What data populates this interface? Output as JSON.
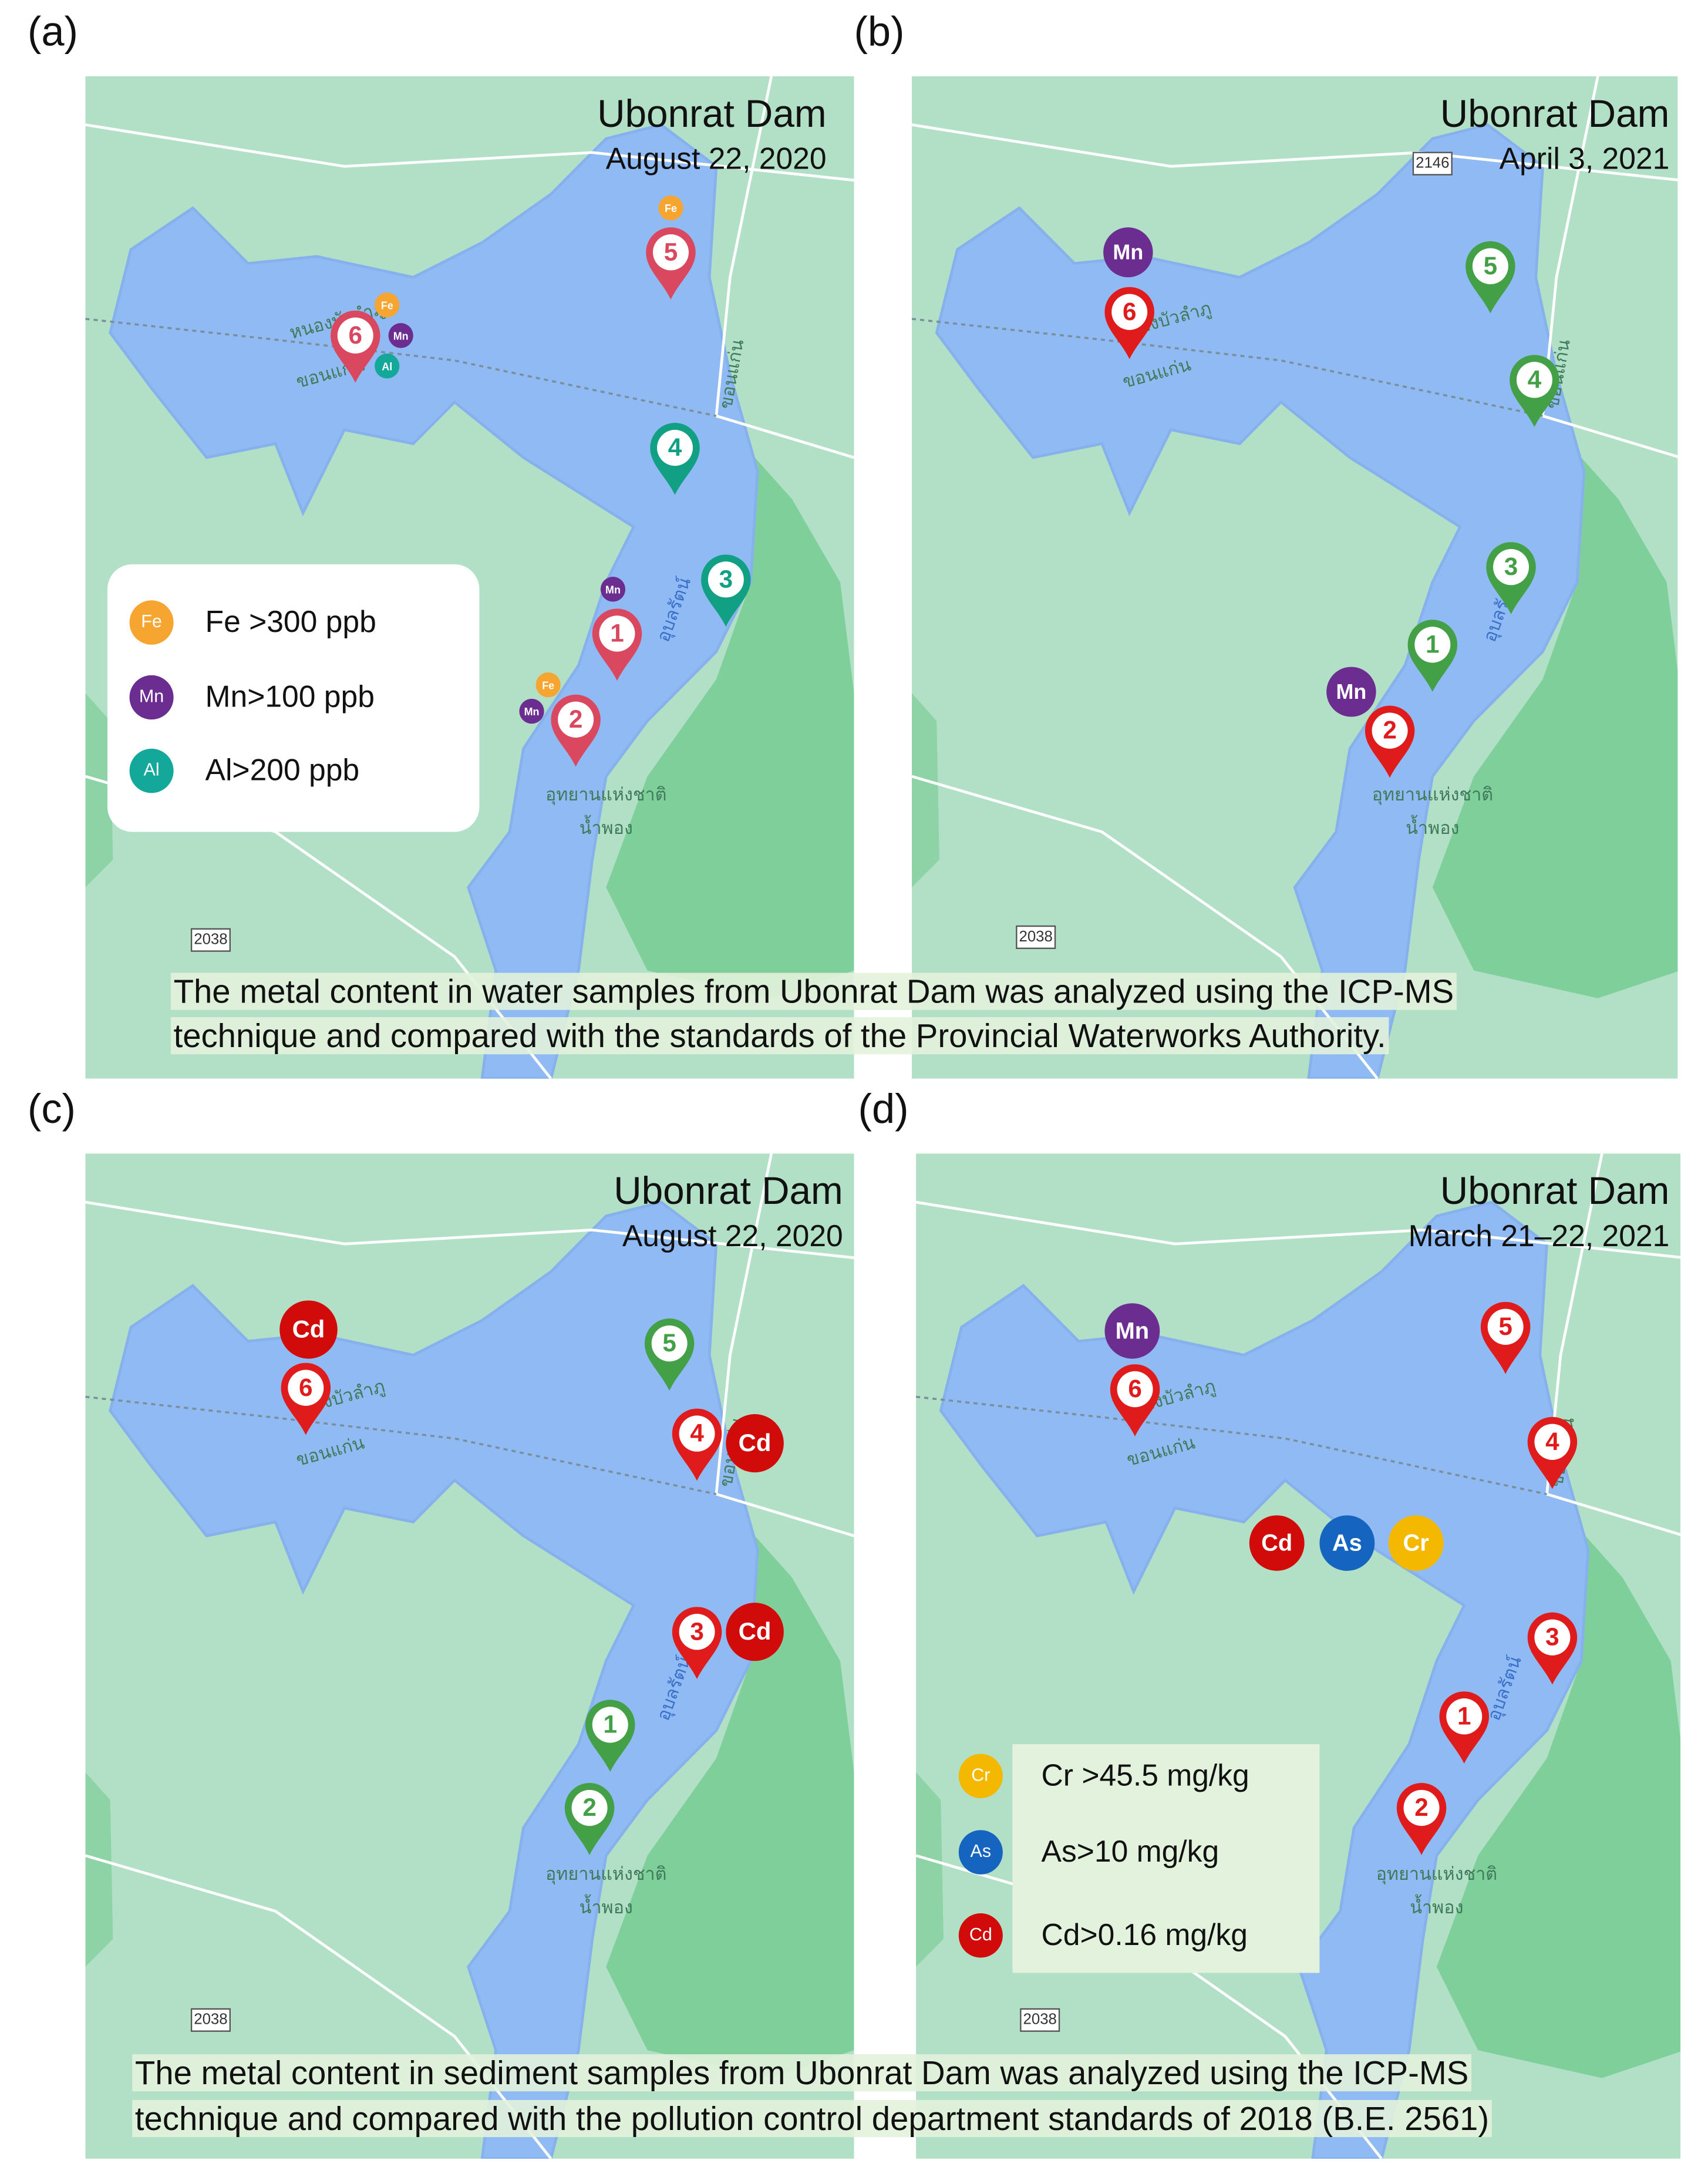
{
  "panels": [
    {
      "label": "(a)",
      "title": "Ubonrat Dam",
      "date": "August 22, 2020",
      "roads": [
        "2038"
      ],
      "markers": [
        {
          "label": "5",
          "color": "#d9485e"
        },
        {
          "label": "6",
          "color": "#d9485e"
        },
        {
          "label": "4",
          "color": "#12a085"
        },
        {
          "label": "3",
          "color": "#12a085"
        },
        {
          "label": "1",
          "color": "#d9485e"
        },
        {
          "label": "2",
          "color": "#d9485e"
        }
      ],
      "badges": [
        {
          "label": "Fe",
          "color": "#f6a531"
        },
        {
          "label": "Fe",
          "color": "#f6a531"
        },
        {
          "label": "Mn",
          "color": "#6b2d8f"
        },
        {
          "label": "Al",
          "color": "#14a89b"
        },
        {
          "label": "Mn",
          "color": "#6b2d8f"
        },
        {
          "label": "Fe",
          "color": "#f6a531"
        },
        {
          "label": "Mn",
          "color": "#6b2d8f"
        }
      ],
      "legend": [
        {
          "badge": "Fe",
          "text": "Fe >300 ppb",
          "color": "#f6a531"
        },
        {
          "badge": "Mn",
          "text": "Mn>100 ppb",
          "color": "#6b2d8f"
        },
        {
          "badge": "Al",
          "text": "Al>200 ppb",
          "color": "#14a89b"
        }
      ]
    },
    {
      "label": "(b)",
      "title": "Ubonrat Dam",
      "date": "April 3, 2021",
      "roads": [
        "2146",
        "2038"
      ],
      "markers": [
        {
          "label": "6",
          "color": "#e01b1b"
        },
        {
          "label": "5",
          "color": "#43a047"
        },
        {
          "label": "4",
          "color": "#43a047"
        },
        {
          "label": "3",
          "color": "#43a047"
        },
        {
          "label": "1",
          "color": "#43a047"
        },
        {
          "label": "2",
          "color": "#e01b1b"
        }
      ],
      "badges": [
        {
          "label": "Mn",
          "color": "#6b2d8f"
        },
        {
          "label": "Mn",
          "color": "#6b2d8f"
        }
      ],
      "legend": []
    },
    {
      "label": "(c)",
      "title": "Ubonrat Dam",
      "date": "August 22, 2020",
      "roads": [
        "2038"
      ],
      "markers": [
        {
          "label": "6",
          "color": "#e01b1b"
        },
        {
          "label": "5",
          "color": "#43a047"
        },
        {
          "label": "4",
          "color": "#e01b1b"
        },
        {
          "label": "3",
          "color": "#e01b1b"
        },
        {
          "label": "1",
          "color": "#43a047"
        },
        {
          "label": "2",
          "color": "#43a047"
        }
      ],
      "badges": [
        {
          "label": "Cd",
          "color": "#d10a0a"
        },
        {
          "label": "Cd",
          "color": "#d10a0a"
        },
        {
          "label": "Cd",
          "color": "#d10a0a"
        }
      ],
      "legend": []
    },
    {
      "label": "(d)",
      "title": "Ubonrat Dam",
      "date": "March 21–22, 2021",
      "roads": [
        "2038"
      ],
      "markers": [
        {
          "label": "6",
          "color": "#e01b1b"
        },
        {
          "label": "5",
          "color": "#e01b1b"
        },
        {
          "label": "4",
          "color": "#e01b1b"
        },
        {
          "label": "3",
          "color": "#e01b1b"
        },
        {
          "label": "1",
          "color": "#e01b1b"
        },
        {
          "label": "2",
          "color": "#e01b1b"
        }
      ],
      "badges": [
        {
          "label": "Mn",
          "color": "#6b2d8f"
        },
        {
          "label": "Cd",
          "color": "#d10a0a"
        },
        {
          "label": "As",
          "color": "#1565c0"
        },
        {
          "label": "Cr",
          "color": "#f5b800"
        }
      ],
      "legend": [
        {
          "badge": "Cr",
          "text": "Cr >45.5 mg/kg",
          "color": "#f5b800"
        },
        {
          "badge": "As",
          "text": "As>10 mg/kg",
          "color": "#1565c0"
        },
        {
          "badge": "Cd",
          "text": "Cd>0.16 mg/kg",
          "color": "#d10a0a"
        }
      ]
    }
  ],
  "map_labels": [
    "หนองบัวลำภู",
    "ขอนแก่น",
    "อุบลรัตน์",
    "อุทยานแห่งชาติ",
    "น้ำพอง",
    "ขอนแก่น"
  ],
  "captions": [
    [
      "The metal content in water samples from Ubonrat Dam was analyzed using the ICP-MS",
      "technique and compared with the standards of the Provincial Waterworks Authority."
    ],
    [
      "The metal content in sediment samples from Ubonrat Dam was analyzed using the ICP-MS",
      "technique and compared with the pollution control department standards of 2018 (B.E. 2561)"
    ]
  ]
}
